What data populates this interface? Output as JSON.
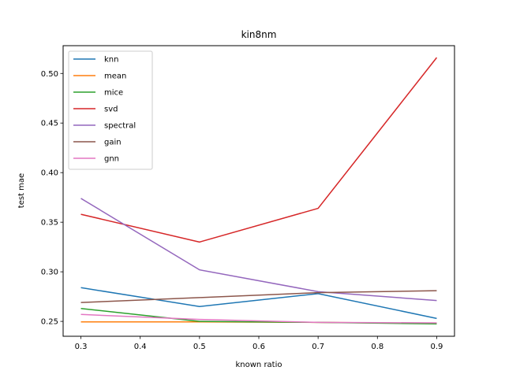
{
  "chart_data": {
    "type": "line",
    "title": "kin8nm",
    "xlabel": "known ratio",
    "ylabel": "test mae",
    "x": [
      0.3,
      0.5,
      0.7,
      0.9
    ],
    "xlim": [
      0.27,
      0.93
    ],
    "ylim": [
      0.235,
      0.528
    ],
    "xticks": [
      "0.3",
      "0.4",
      "0.5",
      "0.6",
      "0.7",
      "0.8",
      "0.9"
    ],
    "yticks": [
      "0.25",
      "0.30",
      "0.35",
      "0.40",
      "0.45",
      "0.50"
    ],
    "grid": false,
    "legend_position": "top-left",
    "series": [
      {
        "name": "knn",
        "color": "#1f77b4",
        "values": [
          0.284,
          0.265,
          0.278,
          0.253
        ]
      },
      {
        "name": "mean",
        "color": "#ff7f0e",
        "values": [
          0.2495,
          0.2495,
          0.249,
          0.248
        ]
      },
      {
        "name": "mice",
        "color": "#2ca02c",
        "values": [
          0.263,
          0.25,
          0.249,
          0.2475
        ]
      },
      {
        "name": "svd",
        "color": "#d62728",
        "values": [
          0.358,
          0.33,
          0.364,
          0.516
        ]
      },
      {
        "name": "spectral",
        "color": "#9467bd",
        "values": [
          0.374,
          0.302,
          0.28,
          0.271
        ]
      },
      {
        "name": "gain",
        "color": "#8c564b",
        "values": [
          0.269,
          0.274,
          0.279,
          0.281
        ]
      },
      {
        "name": "gnn",
        "color": "#e377c2",
        "values": [
          0.257,
          0.252,
          0.249,
          0.2485
        ]
      }
    ]
  }
}
